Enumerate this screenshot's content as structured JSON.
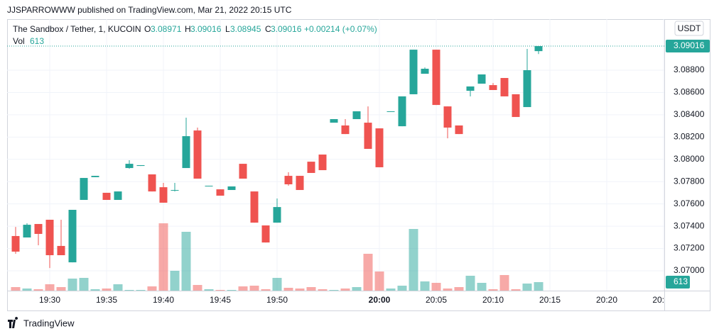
{
  "header": {
    "text": "JJSPARROWWW published on TradingView.com, Mar 21, 2022 20:15 UTC"
  },
  "footer": {
    "brand": "TradingView"
  },
  "chart_data": {
    "type": "candlestick",
    "title": "The Sandbox / Tether, 1, KUCOIN",
    "ohlc_labels": {
      "open": "O",
      "high": "H",
      "low": "L",
      "close": "C"
    },
    "change": "+0.00214 (+0.07%)",
    "volume_label": "Vol",
    "currency": "USDT",
    "categories": [
      null,
      null,
      null,
      "19:30",
      null,
      null,
      null,
      null,
      "19:35",
      null,
      null,
      null,
      null,
      "19:40",
      null,
      null,
      null,
      null,
      "19:45",
      null,
      null,
      null,
      null,
      "19:50",
      null,
      null,
      null,
      null,
      null,
      null,
      null,
      null,
      "20:00",
      null,
      null,
      null,
      null,
      "20:05",
      null,
      null,
      null,
      null,
      "20:10",
      null,
      null,
      null,
      null,
      "20:15",
      null,
      null,
      null,
      null,
      "20:20",
      null,
      null,
      null,
      null,
      "20:"
    ],
    "open": [
      3.07312,
      3.07299,
      3.0742,
      3.07458,
      3.07223,
      3.07076,
      3.07636,
      3.0784,
      3.077,
      3.07636,
      3.07922,
      3.07941,
      3.07865,
      3.0775,
      3.07719,
      3.07922,
      3.08259,
      3.07757,
      3.07731,
      3.07725,
      3.0796,
      3.07712,
      3.07407,
      3.07432,
      3.07852,
      3.07852,
      3.07979,
      3.08043,
      3.08329,
      3.08304,
      3.08361,
      3.08329,
      3.08278,
      3.08425,
      3.08297,
      3.08584,
      3.08768,
      3.08984,
      3.08475,
      3.08304,
      3.08615,
      3.08679,
      3.08666,
      3.0873,
      3.08584,
      3.08469,
      3.08971,
      null,
      null,
      null,
      null,
      null,
      null,
      null,
      null,
      null,
      null,
      null
    ],
    "high": [
      3.07394,
      3.07426,
      3.0742,
      3.07458,
      3.07458,
      3.07547,
      3.07833,
      3.07852,
      3.077,
      3.07712,
      3.07992,
      3.07948,
      3.07865,
      3.07789,
      3.07789,
      3.08374,
      3.08285,
      3.07763,
      3.07731,
      3.07757,
      3.0796,
      3.07712,
      3.07407,
      3.07649,
      3.07884,
      3.07852,
      3.07979,
      3.08043,
      3.08361,
      3.08361,
      3.08431,
      3.08475,
      3.08278,
      3.08431,
      3.08565,
      3.08984,
      3.08825,
      3.08984,
      3.08475,
      3.08304,
      3.08654,
      3.08762,
      3.08685,
      3.0873,
      3.08584,
      3.08991,
      3.09016,
      null,
      null,
      null,
      null,
      null,
      null,
      null,
      null,
      null,
      null,
      null
    ],
    "low": [
      3.07153,
      3.07299,
      3.07229,
      3.07025,
      3.0714,
      3.07076,
      3.07636,
      3.0784,
      3.07636,
      3.07636,
      3.07916,
      3.07941,
      3.07712,
      3.07611,
      3.07712,
      3.07922,
      3.07827,
      3.07757,
      3.07674,
      3.07725,
      3.07827,
      3.07432,
      3.07254,
      3.07432,
      3.07763,
      3.07725,
      3.07878,
      3.07903,
      3.08329,
      3.08227,
      3.08361,
      3.08094,
      3.07929,
      3.08425,
      3.08297,
      3.08584,
      3.08768,
      3.08488,
      3.08189,
      3.08227,
      3.08565,
      3.08679,
      3.08622,
      3.08565,
      3.0838,
      3.08469,
      3.08945,
      null,
      null,
      null,
      null,
      null,
      null,
      null,
      null,
      null,
      null,
      null
    ],
    "close": [
      3.07172,
      3.07413,
      3.07331,
      3.0714,
      3.0714,
      3.07547,
      3.07833,
      3.07852,
      3.07636,
      3.07712,
      3.0796,
      3.07948,
      3.07712,
      3.07611,
      3.07725,
      3.08208,
      3.07827,
      3.07763,
      3.07674,
      3.07757,
      3.07827,
      3.07432,
      3.07254,
      3.07572,
      3.07776,
      3.07725,
      3.07878,
      3.07903,
      3.08361,
      3.08227,
      3.08431,
      3.08094,
      3.07929,
      3.08431,
      3.08565,
      3.08984,
      3.08813,
      3.08488,
      3.08285,
      3.08227,
      3.08654,
      3.08762,
      3.08622,
      3.08565,
      3.0838,
      3.088,
      3.09016,
      null,
      null,
      null,
      null,
      null,
      null,
      null,
      null,
      null,
      null,
      null
    ],
    "volume": [
      255,
      153,
      102,
      459,
      255,
      867,
      918,
      102,
      153,
      459,
      51,
      51,
      306,
      4845,
      1428,
      4233,
      408,
      102,
      51,
      51,
      306,
      357,
      102,
      918,
      204,
      153,
      255,
      102,
      51,
      153,
      255,
      2652,
      1377,
      153,
      357,
      4437,
      663,
      561,
      153,
      255,
      1071,
      561,
      102,
      1122,
      102,
      510,
      613,
      null,
      null,
      null,
      null,
      null,
      null,
      null,
      null,
      null,
      null,
      null
    ],
    "up_color": "#26a69a",
    "down_color": "#ef5350",
    "ylim": [
      3.06822,
      3.09258
    ],
    "yticks": [
      {
        "value": 3.07,
        "label": "3.07000"
      },
      {
        "value": 3.072,
        "label": "3.07200"
      },
      {
        "value": 3.074,
        "label": "3.07400"
      },
      {
        "value": 3.076,
        "label": "3.07600"
      },
      {
        "value": 3.078,
        "label": "3.07800"
      },
      {
        "value": 3.08,
        "label": "3.08000"
      },
      {
        "value": 3.082,
        "label": "3.08200"
      },
      {
        "value": 3.084,
        "label": "3.08400"
      },
      {
        "value": 3.086,
        "label": "3.08600"
      },
      {
        "value": 3.088,
        "label": "3.08800"
      }
    ],
    "grid": true
  }
}
